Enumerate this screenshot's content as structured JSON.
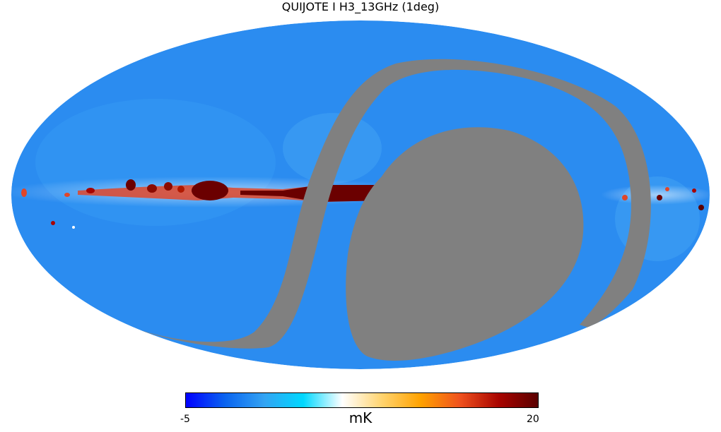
{
  "title": "QUIJOTE I H3_13GHz (1deg)",
  "projection": "mollweide",
  "colors": {
    "background": "#2b8cf0",
    "mask": "#808080",
    "plane_hot": "#6b0000",
    "plane_warm": "#e0462a",
    "plane_cool": "#ffffff"
  },
  "colorbar": {
    "min": -5,
    "max": 20,
    "min_label": "-5",
    "max_label": "20",
    "unit": "mK",
    "colormap": "planck",
    "stops": [
      "#0000ff",
      "#0a64f0",
      "#33a3f3",
      "#00d8ff",
      "#ffffff",
      "#ffd470",
      "#ffa200",
      "#f0521e",
      "#a80400",
      "#5a0000"
    ]
  }
}
